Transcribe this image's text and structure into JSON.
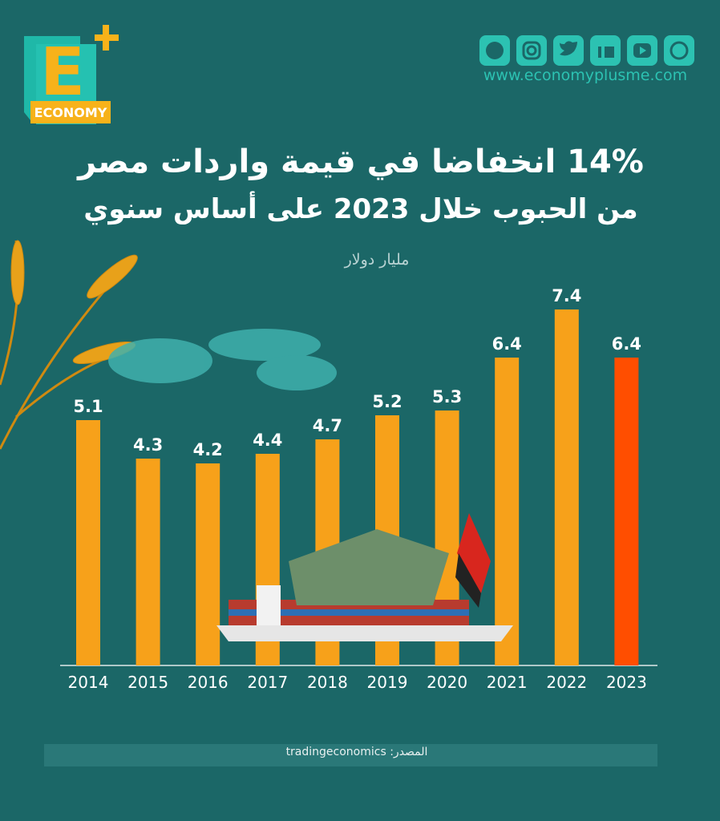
{
  "brand": {
    "logo_letter": "E",
    "logo_text": "ECONOMY",
    "website": "www.economyplusme.com"
  },
  "chart_data": {
    "type": "bar",
    "title": "14% انخفاضا في قيمة واردات مصر",
    "subtitle": "من الحبوب خلال 2023 على أساس سنوي",
    "unit_label": "مليار دولار",
    "categories": [
      "2014",
      "2015",
      "2016",
      "2017",
      "2018",
      "2019",
      "2020",
      "2021",
      "2022",
      "2023"
    ],
    "values": [
      5.1,
      4.3,
      4.2,
      4.4,
      4.7,
      5.2,
      5.3,
      6.4,
      7.4,
      6.4
    ],
    "colors": [
      "#f7a11a",
      "#f7a11a",
      "#f7a11a",
      "#f7a11a",
      "#f7a11a",
      "#f7a11a",
      "#f7a11a",
      "#f7a11a",
      "#f7a11a",
      "#ff4e00"
    ],
    "source": "المصدر: tradingeconomics"
  }
}
